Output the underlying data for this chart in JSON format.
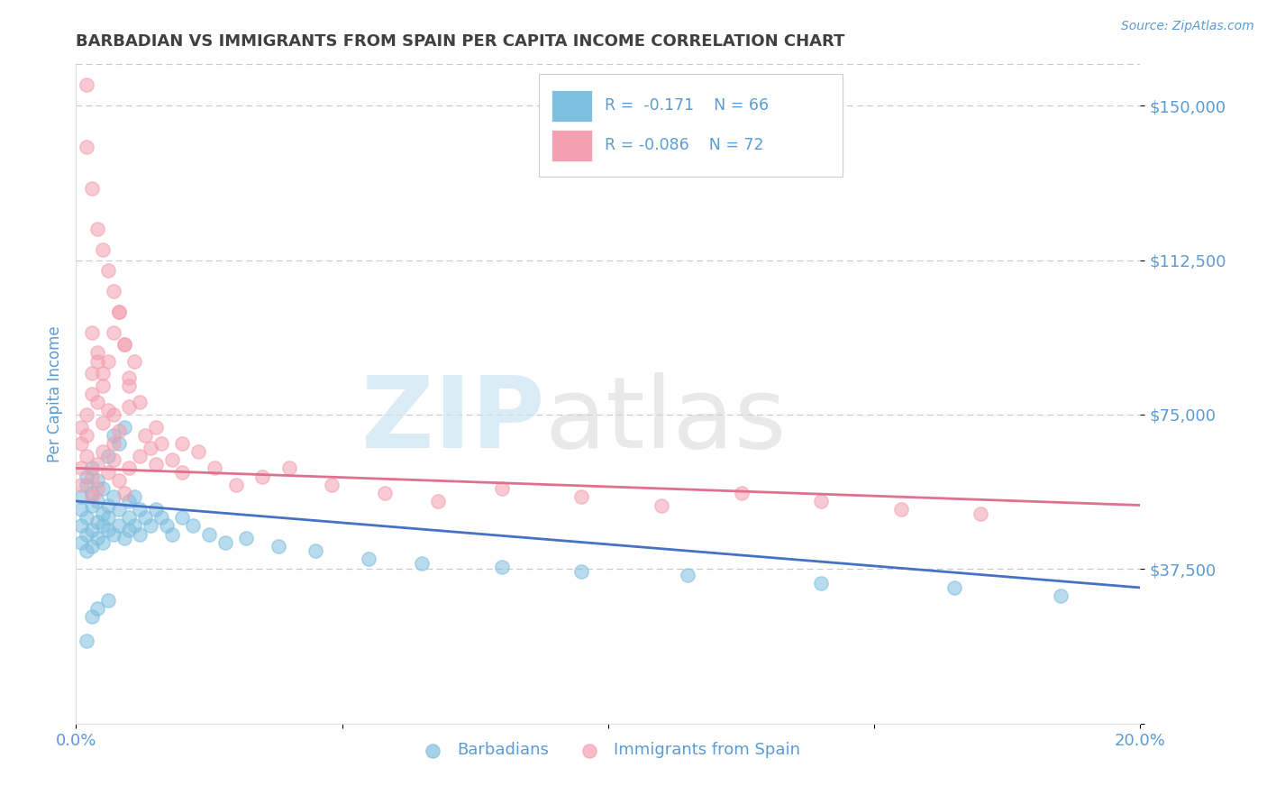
{
  "title": "BARBADIAN VS IMMIGRANTS FROM SPAIN PER CAPITA INCOME CORRELATION CHART",
  "source_text": "Source: ZipAtlas.com",
  "ylabel": "Per Capita Income",
  "xlim": [
    0.0,
    0.2
  ],
  "ylim": [
    0,
    160000
  ],
  "yticks": [
    0,
    37500,
    75000,
    112500,
    150000
  ],
  "ytick_labels": [
    "",
    "$37,500",
    "$75,000",
    "$112,500",
    "$150,000"
  ],
  "xticks": [
    0.0,
    0.05,
    0.1,
    0.15,
    0.2
  ],
  "xtick_labels": [
    "0.0%",
    "",
    "",
    "",
    "20.0%"
  ],
  "legend_label1": "Barbadians",
  "legend_label2": "Immigrants from Spain",
  "blue_color": "#7fbfdf",
  "pink_color": "#f4a0b0",
  "blue_line_color": "#4472C4",
  "pink_line_color": "#e07090",
  "title_color": "#404040",
  "axis_label_color": "#5B9BD5",
  "tick_color": "#5B9BD5",
  "grid_color": "#c8c8c8",
  "background_color": "#ffffff",
  "blue_scatter_x": [
    0.001,
    0.001,
    0.001,
    0.001,
    0.002,
    0.002,
    0.002,
    0.002,
    0.002,
    0.003,
    0.003,
    0.003,
    0.003,
    0.003,
    0.004,
    0.004,
    0.004,
    0.004,
    0.005,
    0.005,
    0.005,
    0.005,
    0.006,
    0.006,
    0.006,
    0.006,
    0.007,
    0.007,
    0.007,
    0.008,
    0.008,
    0.008,
    0.009,
    0.009,
    0.01,
    0.01,
    0.01,
    0.011,
    0.011,
    0.012,
    0.012,
    0.013,
    0.014,
    0.015,
    0.016,
    0.017,
    0.018,
    0.02,
    0.022,
    0.025,
    0.028,
    0.032,
    0.038,
    0.045,
    0.055,
    0.065,
    0.08,
    0.095,
    0.115,
    0.14,
    0.165,
    0.185,
    0.006,
    0.003,
    0.004,
    0.002
  ],
  "blue_scatter_y": [
    52000,
    48000,
    55000,
    44000,
    50000,
    46000,
    58000,
    42000,
    60000,
    53000,
    47000,
    56000,
    43000,
    62000,
    49000,
    54000,
    45000,
    59000,
    51000,
    48000,
    57000,
    44000,
    65000,
    50000,
    47000,
    53000,
    70000,
    46000,
    55000,
    68000,
    48000,
    52000,
    72000,
    45000,
    50000,
    47000,
    54000,
    48000,
    55000,
    52000,
    46000,
    50000,
    48000,
    52000,
    50000,
    48000,
    46000,
    50000,
    48000,
    46000,
    44000,
    45000,
    43000,
    42000,
    40000,
    39000,
    38000,
    37000,
    36000,
    34000,
    33000,
    31000,
    30000,
    26000,
    28000,
    20000
  ],
  "pink_scatter_x": [
    0.001,
    0.001,
    0.001,
    0.001,
    0.002,
    0.002,
    0.002,
    0.003,
    0.003,
    0.003,
    0.003,
    0.004,
    0.004,
    0.004,
    0.004,
    0.005,
    0.005,
    0.005,
    0.006,
    0.006,
    0.006,
    0.007,
    0.007,
    0.007,
    0.008,
    0.008,
    0.008,
    0.009,
    0.009,
    0.01,
    0.01,
    0.01,
    0.011,
    0.012,
    0.013,
    0.014,
    0.015,
    0.016,
    0.018,
    0.02,
    0.023,
    0.026,
    0.03,
    0.035,
    0.04,
    0.048,
    0.058,
    0.068,
    0.08,
    0.095,
    0.11,
    0.125,
    0.14,
    0.155,
    0.17,
    0.002,
    0.003,
    0.004,
    0.005,
    0.006,
    0.007,
    0.008,
    0.003,
    0.005,
    0.007,
    0.002,
    0.004,
    0.009,
    0.01,
    0.012,
    0.015,
    0.02
  ],
  "pink_scatter_y": [
    68000,
    72000,
    62000,
    58000,
    75000,
    65000,
    70000,
    80000,
    60000,
    85000,
    55000,
    78000,
    63000,
    90000,
    57000,
    82000,
    66000,
    73000,
    88000,
    61000,
    76000,
    95000,
    64000,
    68000,
    100000,
    59000,
    71000,
    92000,
    56000,
    84000,
    62000,
    77000,
    88000,
    65000,
    70000,
    67000,
    63000,
    68000,
    64000,
    61000,
    66000,
    62000,
    58000,
    60000,
    62000,
    58000,
    56000,
    54000,
    57000,
    55000,
    53000,
    56000,
    54000,
    52000,
    51000,
    140000,
    130000,
    120000,
    115000,
    110000,
    105000,
    100000,
    95000,
    85000,
    75000,
    155000,
    88000,
    92000,
    82000,
    78000,
    72000,
    68000
  ]
}
